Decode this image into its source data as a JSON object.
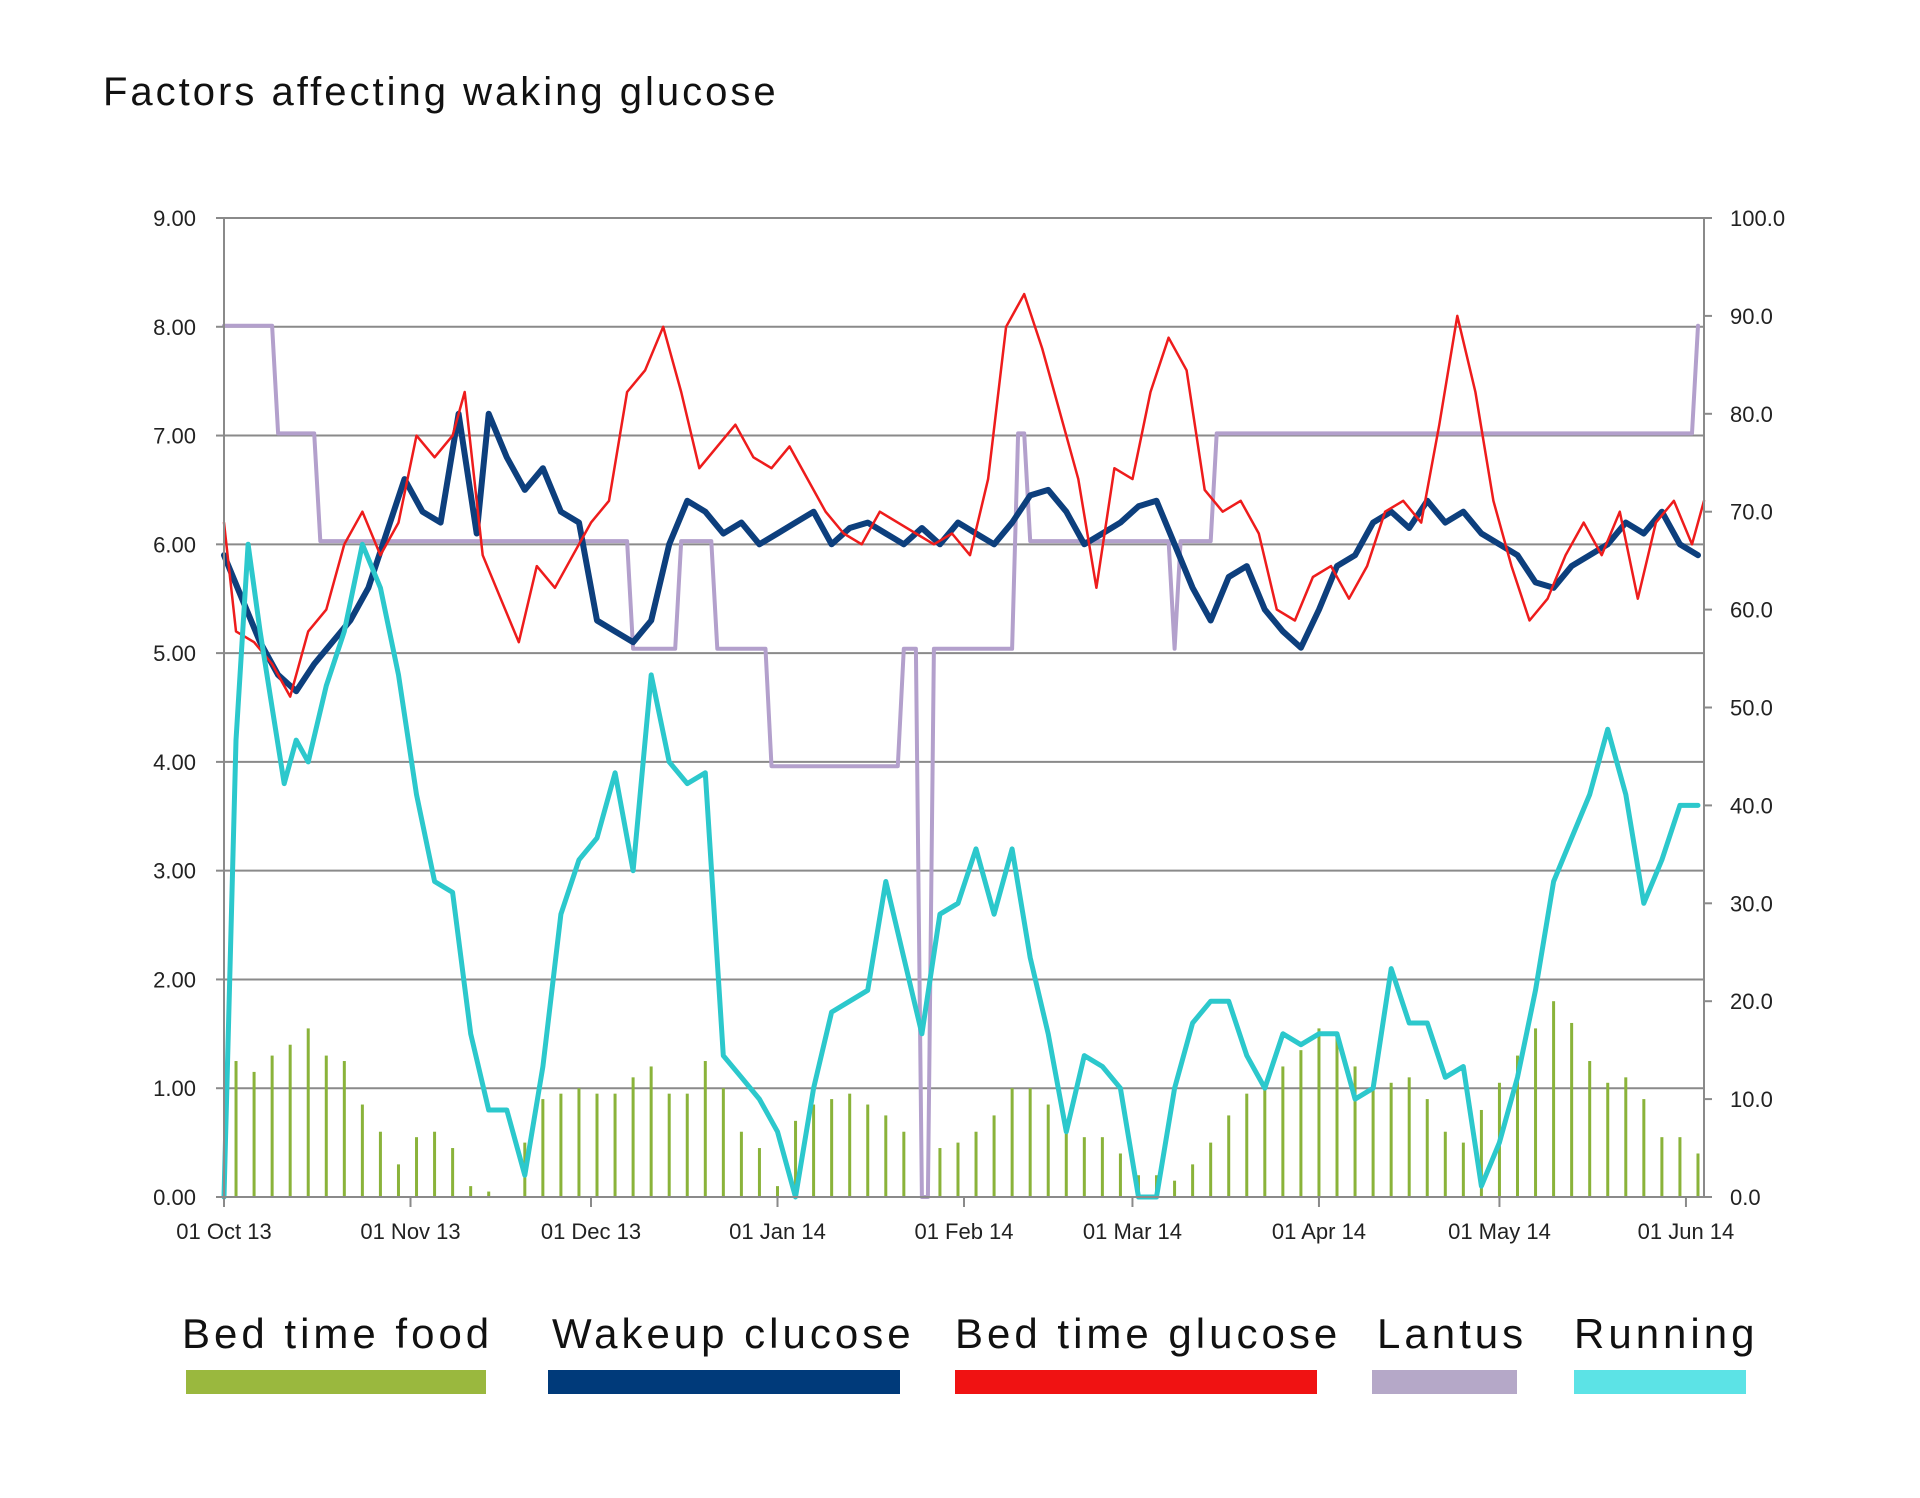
{
  "chart_data": {
    "type": "line",
    "title": "Factors affecting waking glucose",
    "xlabel": "",
    "ylabel": "",
    "y_left_range": [
      0,
      9
    ],
    "y_right_range": [
      0,
      100
    ],
    "y_left_ticks": [
      "0.00",
      "1.00",
      "2.00",
      "3.00",
      "4.00",
      "5.00",
      "6.00",
      "7.00",
      "8.00",
      "9.00"
    ],
    "y_right_ticks": [
      "0.0",
      "10.0",
      "20.0",
      "30.0",
      "40.0",
      "50.0",
      "60.0",
      "70.0",
      "80.0",
      "90.0",
      "100.0"
    ],
    "x_range": [
      "2013-10-01",
      "2014-06-04"
    ],
    "x_ticks": [
      {
        "date": "2013-10-01",
        "label": "01 Oct 13"
      },
      {
        "date": "2013-11-01",
        "label": "01 Nov 13"
      },
      {
        "date": "2013-12-01",
        "label": "01 Dec 13"
      },
      {
        "date": "2014-01-01",
        "label": "01 Jan 14"
      },
      {
        "date": "2014-02-01",
        "label": "01 Feb 14"
      },
      {
        "date": "2014-03-01",
        "label": "01 Mar 14"
      },
      {
        "date": "2014-04-01",
        "label": "01 Apr 14"
      },
      {
        "date": "2014-05-01",
        "label": "01 May 14"
      },
      {
        "date": "2014-06-01",
        "label": "01 Jun 14"
      }
    ],
    "grid": true,
    "legend_position": "bottom",
    "series": [
      {
        "name": "Bed time food",
        "type": "bar",
        "axis": "left",
        "color": "#8ab33a",
        "legend_color": "#9ab83e",
        "x": [
          "2013-10-03",
          "2013-10-06",
          "2013-10-09",
          "2013-10-12",
          "2013-10-15",
          "2013-10-18",
          "2013-10-21",
          "2013-10-24",
          "2013-10-27",
          "2013-10-30",
          "2013-11-02",
          "2013-11-05",
          "2013-11-08",
          "2013-11-11",
          "2013-11-14",
          "2013-11-17",
          "2013-11-20",
          "2013-11-23",
          "2013-11-26",
          "2013-11-29",
          "2013-12-02",
          "2013-12-05",
          "2013-12-08",
          "2013-12-11",
          "2013-12-14",
          "2013-12-17",
          "2013-12-20",
          "2013-12-23",
          "2013-12-26",
          "2013-12-29",
          "2014-01-01",
          "2014-01-04",
          "2014-01-07",
          "2014-01-10",
          "2014-01-13",
          "2014-01-16",
          "2014-01-19",
          "2014-01-22",
          "2014-01-25",
          "2014-01-28",
          "2014-01-31",
          "2014-02-03",
          "2014-02-06",
          "2014-02-09",
          "2014-02-12",
          "2014-02-15",
          "2014-02-18",
          "2014-02-21",
          "2014-02-24",
          "2014-02-27",
          "2014-03-02",
          "2014-03-05",
          "2014-03-08",
          "2014-03-11",
          "2014-03-14",
          "2014-03-17",
          "2014-03-20",
          "2014-03-23",
          "2014-03-26",
          "2014-03-29",
          "2014-04-01",
          "2014-04-04",
          "2014-04-07",
          "2014-04-10",
          "2014-04-13",
          "2014-04-16",
          "2014-04-19",
          "2014-04-22",
          "2014-04-25",
          "2014-04-28",
          "2014-05-01",
          "2014-05-04",
          "2014-05-07",
          "2014-05-10",
          "2014-05-13",
          "2014-05-16",
          "2014-05-19",
          "2014-05-22",
          "2014-05-25",
          "2014-05-28",
          "2014-05-31",
          "2014-06-03"
        ],
        "values": [
          1.25,
          1.15,
          1.3,
          1.4,
          1.55,
          1.3,
          1.25,
          0.85,
          0.6,
          0.3,
          0.55,
          0.6,
          0.45,
          0.1,
          0.05,
          0.0,
          0.5,
          0.9,
          0.95,
          1.0,
          0.95,
          0.95,
          1.1,
          1.2,
          0.95,
          0.95,
          1.25,
          1.0,
          0.6,
          0.45,
          0.1,
          0.7,
          0.85,
          0.9,
          0.95,
          0.85,
          0.75,
          0.6,
          0.35,
          0.45,
          0.5,
          0.6,
          0.75,
          1.0,
          1.0,
          0.85,
          0.65,
          0.55,
          0.55,
          0.4,
          0.2,
          0.2,
          0.15,
          0.3,
          0.5,
          0.75,
          0.95,
          1.05,
          1.2,
          1.35,
          1.55,
          1.5,
          1.2,
          1.0,
          1.05,
          1.1,
          0.9,
          0.6,
          0.5,
          0.8,
          1.05,
          1.3,
          1.55,
          1.8,
          1.6,
          1.25,
          1.05,
          1.1,
          0.9,
          0.55,
          0.55,
          0.4
        ]
      },
      {
        "name": "Wakeup clucose",
        "type": "line",
        "axis": "left",
        "color": "#0d3f7d",
        "legend_color": "#003a7a",
        "x": [
          "2013-10-01",
          "2013-10-04",
          "2013-10-07",
          "2013-10-10",
          "2013-10-13",
          "2013-10-16",
          "2013-10-19",
          "2013-10-22",
          "2013-10-25",
          "2013-10-28",
          "2013-10-31",
          "2013-11-03",
          "2013-11-06",
          "2013-11-09",
          "2013-11-12",
          "2013-11-14",
          "2013-11-17",
          "2013-11-20",
          "2013-11-23",
          "2013-11-26",
          "2013-11-29",
          "2013-12-02",
          "2013-12-05",
          "2013-12-08",
          "2013-12-11",
          "2013-12-14",
          "2013-12-17",
          "2013-12-20",
          "2013-12-23",
          "2013-12-26",
          "2013-12-29",
          "2014-01-01",
          "2014-01-04",
          "2014-01-07",
          "2014-01-10",
          "2014-01-13",
          "2014-01-16",
          "2014-01-19",
          "2014-01-22",
          "2014-01-25",
          "2014-01-28",
          "2014-01-31",
          "2014-02-03",
          "2014-02-06",
          "2014-02-09",
          "2014-02-12",
          "2014-02-15",
          "2014-02-18",
          "2014-02-21",
          "2014-02-24",
          "2014-02-27",
          "2014-03-02",
          "2014-03-05",
          "2014-03-08",
          "2014-03-11",
          "2014-03-14",
          "2014-03-17",
          "2014-03-20",
          "2014-03-23",
          "2014-03-26",
          "2014-03-29",
          "2014-04-01",
          "2014-04-04",
          "2014-04-07",
          "2014-04-10",
          "2014-04-13",
          "2014-04-16",
          "2014-04-19",
          "2014-04-22",
          "2014-04-25",
          "2014-04-28",
          "2014-05-01",
          "2014-05-04",
          "2014-05-07",
          "2014-05-10",
          "2014-05-13",
          "2014-05-16",
          "2014-05-19",
          "2014-05-22",
          "2014-05-25",
          "2014-05-28",
          "2014-05-31",
          "2014-06-03"
        ],
        "values": [
          5.9,
          5.5,
          5.1,
          4.8,
          4.65,
          4.9,
          5.1,
          5.3,
          5.6,
          6.1,
          6.6,
          6.3,
          6.2,
          7.2,
          6.1,
          7.2,
          6.8,
          6.5,
          6.7,
          6.3,
          6.2,
          5.3,
          5.2,
          5.1,
          5.3,
          6.0,
          6.4,
          6.3,
          6.1,
          6.2,
          6.0,
          6.1,
          6.2,
          6.3,
          6.0,
          6.15,
          6.2,
          6.1,
          6.0,
          6.15,
          6.0,
          6.2,
          6.1,
          6.0,
          6.2,
          6.45,
          6.5,
          6.3,
          6.0,
          6.1,
          6.2,
          6.35,
          6.4,
          6.0,
          5.6,
          5.3,
          5.7,
          5.8,
          5.4,
          5.2,
          5.05,
          5.4,
          5.8,
          5.9,
          6.2,
          6.3,
          6.15,
          6.4,
          6.2,
          6.3,
          6.1,
          6.0,
          5.9,
          5.65,
          5.6,
          5.8,
          5.9,
          6.0,
          6.2,
          6.1,
          6.3,
          6.0,
          5.9
        ]
      },
      {
        "name": "Bed time glucose",
        "type": "line",
        "axis": "left",
        "color": "#ee1c1c",
        "legend_color": "#f01212",
        "x": [
          "2013-10-01",
          "2013-10-03",
          "2013-10-06",
          "2013-10-09",
          "2013-10-12",
          "2013-10-15",
          "2013-10-18",
          "2013-10-21",
          "2013-10-24",
          "2013-10-27",
          "2013-10-30",
          "2013-11-02",
          "2013-11-05",
          "2013-11-08",
          "2013-11-10",
          "2013-11-13",
          "2013-11-16",
          "2013-11-19",
          "2013-11-22",
          "2013-11-25",
          "2013-11-28",
          "2013-12-01",
          "2013-12-04",
          "2013-12-07",
          "2013-12-10",
          "2013-12-13",
          "2013-12-16",
          "2013-12-19",
          "2013-12-22",
          "2013-12-25",
          "2013-12-28",
          "2013-12-31",
          "2014-01-03",
          "2014-01-06",
          "2014-01-09",
          "2014-01-12",
          "2014-01-15",
          "2014-01-18",
          "2014-01-21",
          "2014-01-24",
          "2014-01-27",
          "2014-01-30",
          "2014-02-02",
          "2014-02-05",
          "2014-02-08",
          "2014-02-11",
          "2014-02-14",
          "2014-02-17",
          "2014-02-20",
          "2014-02-23",
          "2014-02-26",
          "2014-03-01",
          "2014-03-04",
          "2014-03-07",
          "2014-03-10",
          "2014-03-13",
          "2014-03-16",
          "2014-03-19",
          "2014-03-22",
          "2014-03-25",
          "2014-03-28",
          "2014-03-31",
          "2014-04-03",
          "2014-04-06",
          "2014-04-09",
          "2014-04-12",
          "2014-04-15",
          "2014-04-18",
          "2014-04-21",
          "2014-04-24",
          "2014-04-27",
          "2014-04-30",
          "2014-05-03",
          "2014-05-06",
          "2014-05-09",
          "2014-05-12",
          "2014-05-15",
          "2014-05-18",
          "2014-05-21",
          "2014-05-24",
          "2014-05-27",
          "2014-05-30",
          "2014-06-02",
          "2014-06-04"
        ],
        "values": [
          6.2,
          5.2,
          5.1,
          4.9,
          4.6,
          5.2,
          5.4,
          6.0,
          6.3,
          5.9,
          6.2,
          7.0,
          6.8,
          7.0,
          7.4,
          5.9,
          5.5,
          5.1,
          5.8,
          5.6,
          5.9,
          6.2,
          6.4,
          7.4,
          7.6,
          8.0,
          7.4,
          6.7,
          6.9,
          7.1,
          6.8,
          6.7,
          6.9,
          6.6,
          6.3,
          6.1,
          6.0,
          6.3,
          6.2,
          6.1,
          6.0,
          6.1,
          5.9,
          6.6,
          8.0,
          8.3,
          7.8,
          7.2,
          6.6,
          5.6,
          6.7,
          6.6,
          7.4,
          7.9,
          7.6,
          6.5,
          6.3,
          6.4,
          6.1,
          5.4,
          5.3,
          5.7,
          5.8,
          5.5,
          5.8,
          6.3,
          6.4,
          6.2,
          7.1,
          8.1,
          7.4,
          6.4,
          5.8,
          5.3,
          5.5,
          5.9,
          6.2,
          5.9,
          6.3,
          5.5,
          6.2,
          6.4,
          6.0,
          6.4
        ]
      },
      {
        "name": "Lantus",
        "type": "line",
        "axis": "right",
        "color": "#b3a0cc",
        "legend_color": "#b5a8c8",
        "x": [
          "2013-10-01",
          "2013-10-09",
          "2013-10-10",
          "2013-10-16",
          "2013-10-17",
          "2013-12-07",
          "2013-12-08",
          "2013-12-15",
          "2013-12-16",
          "2013-12-21",
          "2013-12-22",
          "2013-12-30",
          "2013-12-31",
          "2014-01-21",
          "2014-01-22",
          "2014-01-24",
          "2014-01-25",
          "2014-01-26",
          "2014-01-27",
          "2014-02-09",
          "2014-02-10",
          "2014-02-11",
          "2014-02-12",
          "2014-03-07",
          "2014-03-08",
          "2014-03-09",
          "2014-03-10",
          "2014-03-14",
          "2014-03-15",
          "2014-06-02",
          "2014-06-03"
        ],
        "values": [
          89,
          89,
          78,
          78,
          67,
          67,
          56,
          56,
          67,
          67,
          56,
          56,
          44,
          44,
          56,
          56,
          0,
          0,
          56,
          56,
          78,
          78,
          67,
          67,
          56,
          67,
          67,
          67,
          78,
          78,
          89
        ]
      },
      {
        "name": "Running",
        "type": "line",
        "axis": "left",
        "color": "#2cc8cc",
        "legend_color": "#5ce3e6",
        "x": [
          "2013-10-01",
          "2013-10-03",
          "2013-10-05",
          "2013-10-07",
          "2013-10-09",
          "2013-10-11",
          "2013-10-13",
          "2013-10-15",
          "2013-10-18",
          "2013-10-21",
          "2013-10-24",
          "2013-10-27",
          "2013-10-30",
          "2013-11-02",
          "2013-11-05",
          "2013-11-08",
          "2013-11-11",
          "2013-11-14",
          "2013-11-17",
          "2013-11-20",
          "2013-11-23",
          "2013-11-26",
          "2013-11-29",
          "2013-12-02",
          "2013-12-05",
          "2013-12-08",
          "2013-12-11",
          "2013-12-14",
          "2013-12-17",
          "2013-12-20",
          "2013-12-23",
          "2013-12-26",
          "2013-12-29",
          "2014-01-01",
          "2014-01-04",
          "2014-01-07",
          "2014-01-10",
          "2014-01-13",
          "2014-01-16",
          "2014-01-19",
          "2014-01-22",
          "2014-01-25",
          "2014-01-28",
          "2014-01-31",
          "2014-02-03",
          "2014-02-06",
          "2014-02-09",
          "2014-02-12",
          "2014-02-15",
          "2014-02-18",
          "2014-02-21",
          "2014-02-24",
          "2014-02-27",
          "2014-03-02",
          "2014-03-05",
          "2014-03-08",
          "2014-03-11",
          "2014-03-14",
          "2014-03-17",
          "2014-03-20",
          "2014-03-23",
          "2014-03-26",
          "2014-03-29",
          "2014-04-01",
          "2014-04-04",
          "2014-04-07",
          "2014-04-10",
          "2014-04-13",
          "2014-04-16",
          "2014-04-19",
          "2014-04-22",
          "2014-04-25",
          "2014-04-28",
          "2014-05-01",
          "2014-05-04",
          "2014-05-07",
          "2014-05-10",
          "2014-05-13",
          "2014-05-16",
          "2014-05-19",
          "2014-05-22",
          "2014-05-25",
          "2014-05-28",
          "2014-05-31",
          "2014-06-03"
        ],
        "values": [
          0.0,
          4.2,
          6.0,
          5.2,
          4.5,
          3.8,
          4.2,
          4.0,
          4.7,
          5.2,
          6.0,
          5.6,
          4.8,
          3.7,
          2.9,
          2.8,
          1.5,
          0.8,
          0.8,
          0.2,
          1.2,
          2.6,
          3.1,
          3.3,
          3.9,
          3.0,
          4.8,
          4.0,
          3.8,
          3.9,
          1.3,
          1.1,
          0.9,
          0.6,
          0.0,
          1.0,
          1.7,
          1.8,
          1.9,
          2.9,
          2.2,
          1.5,
          2.6,
          2.7,
          3.2,
          2.6,
          3.2,
          2.2,
          1.5,
          0.6,
          1.3,
          1.2,
          1.0,
          0.0,
          0.0,
          1.0,
          1.6,
          1.8,
          1.8,
          1.3,
          1.0,
          1.5,
          1.4,
          1.5,
          1.5,
          0.9,
          1.0,
          2.1,
          1.6,
          1.6,
          1.1,
          1.2,
          0.1,
          0.5,
          1.1,
          1.9,
          2.9,
          3.3,
          3.7,
          4.3,
          3.7,
          2.7,
          3.1,
          3.6,
          3.6
        ]
      }
    ]
  }
}
